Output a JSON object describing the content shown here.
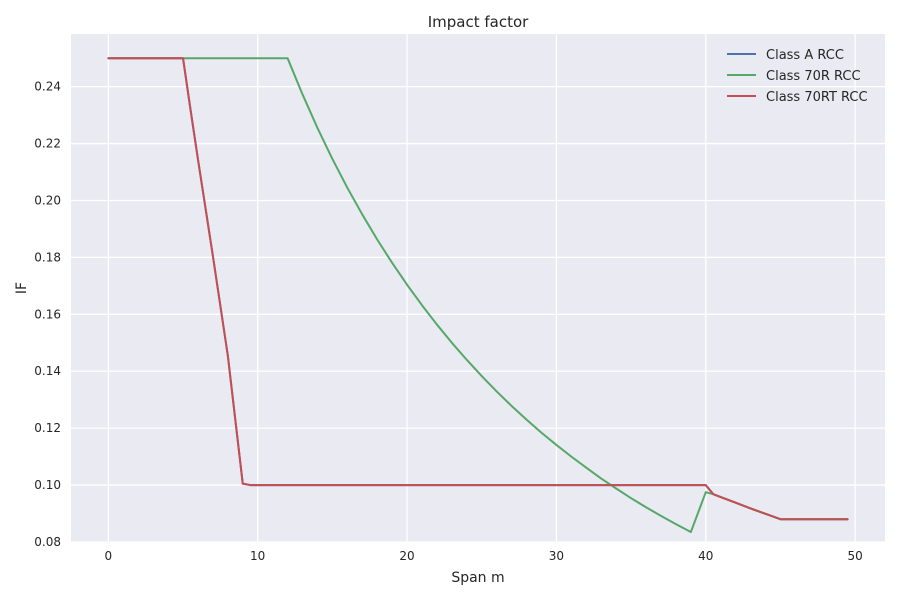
{
  "chart_data": {
    "type": "line",
    "title": "Impact factor",
    "xlabel": "Span m",
    "ylabel": "IF",
    "xlim": [
      -2.5,
      52
    ],
    "ylim": [
      0.08,
      0.2585
    ],
    "xticks": [
      0,
      10,
      20,
      30,
      40,
      50
    ],
    "yticks": [
      0.08,
      0.1,
      0.12,
      0.14,
      0.16,
      0.18,
      0.2,
      0.22,
      0.24
    ],
    "ytick_labels": [
      "0.08",
      "0.10",
      "0.12",
      "0.14",
      "0.16",
      "0.18",
      "0.20",
      "0.22",
      "0.24"
    ],
    "grid": true,
    "background_color": "#eaeaf2",
    "legend_position": "top-right",
    "series": [
      {
        "name": "Class A RCC",
        "color": "#4c72b0",
        "x": [
          0,
          5,
          5.5,
          6,
          7,
          8,
          9,
          9.5,
          10,
          11,
          12,
          13,
          14,
          15,
          16,
          17,
          18,
          19,
          20,
          21,
          22,
          23,
          24,
          25,
          26,
          27,
          28,
          29,
          30,
          31,
          32,
          33,
          34,
          35,
          36,
          37,
          38,
          39,
          40,
          40.5,
          41,
          42,
          43,
          44,
          45,
          46,
          47,
          48,
          49,
          49.5
        ],
        "y": [
          0.25,
          0.25,
          0.232,
          0.2145,
          0.1805,
          0.1455,
          0.1005,
          0.1,
          0.1,
          0.1,
          0.1,
          0.1,
          0.1,
          0.1,
          0.1,
          0.1,
          0.1,
          0.1,
          0.1,
          0.1,
          0.1,
          0.1,
          0.1,
          0.1,
          0.1,
          0.1,
          0.1,
          0.1,
          0.1,
          0.1,
          0.1,
          0.1,
          0.1,
          0.1,
          0.1,
          0.1,
          0.1,
          0.1,
          0.1,
          0.0968,
          0.0958,
          0.0938,
          0.0918,
          0.0899,
          0.088,
          0.088,
          0.088,
          0.088,
          0.088,
          0.088
        ]
      },
      {
        "name": "Class 70R RCC",
        "color": "#55a868",
        "x": [
          0,
          5,
          6,
          8,
          10,
          12,
          13,
          14,
          15,
          16,
          17,
          18,
          19,
          20,
          21,
          22,
          23,
          24,
          25,
          26,
          27,
          28,
          29,
          30,
          31,
          32,
          33,
          34,
          35,
          36,
          37,
          38,
          39,
          40,
          40.5,
          41,
          42,
          43,
          44,
          45,
          46,
          47,
          48,
          49,
          49.5
        ],
        "y": [
          0.25,
          0.25,
          0.25,
          0.25,
          0.25,
          0.25,
          0.2373,
          0.2255,
          0.2146,
          0.2045,
          0.1951,
          0.1863,
          0.1781,
          0.1704,
          0.1632,
          0.1564,
          0.15,
          0.144,
          0.1383,
          0.1329,
          0.1278,
          0.123,
          0.1184,
          0.1141,
          0.11,
          0.1061,
          0.1023,
          0.0988,
          0.0954,
          0.0922,
          0.0892,
          0.0863,
          0.0835,
          0.0975,
          0.0968,
          0.0958,
          0.0938,
          0.0918,
          0.0899,
          0.088,
          0.088,
          0.088,
          0.088,
          0.088,
          0.088
        ]
      },
      {
        "name": "Class 70RT RCC",
        "color": "#c44e52",
        "x": [
          0,
          5,
          5.5,
          6,
          7,
          8,
          9,
          9.5,
          10,
          11,
          12,
          13,
          14,
          15,
          16,
          17,
          18,
          19,
          20,
          21,
          22,
          23,
          24,
          25,
          26,
          27,
          28,
          29,
          30,
          31,
          32,
          33,
          34,
          35,
          36,
          37,
          38,
          39,
          40,
          40.5,
          41,
          42,
          43,
          44,
          45,
          46,
          47,
          48,
          49,
          49.5
        ],
        "y": [
          0.25,
          0.25,
          0.232,
          0.2145,
          0.1805,
          0.1455,
          0.1005,
          0.1,
          0.1,
          0.1,
          0.1,
          0.1,
          0.1,
          0.1,
          0.1,
          0.1,
          0.1,
          0.1,
          0.1,
          0.1,
          0.1,
          0.1,
          0.1,
          0.1,
          0.1,
          0.1,
          0.1,
          0.1,
          0.1,
          0.1,
          0.1,
          0.1,
          0.1,
          0.1,
          0.1,
          0.1,
          0.1,
          0.1,
          0.1,
          0.0968,
          0.0958,
          0.0938,
          0.0918,
          0.0899,
          0.088,
          0.088,
          0.088,
          0.088,
          0.088,
          0.088
        ]
      }
    ]
  }
}
